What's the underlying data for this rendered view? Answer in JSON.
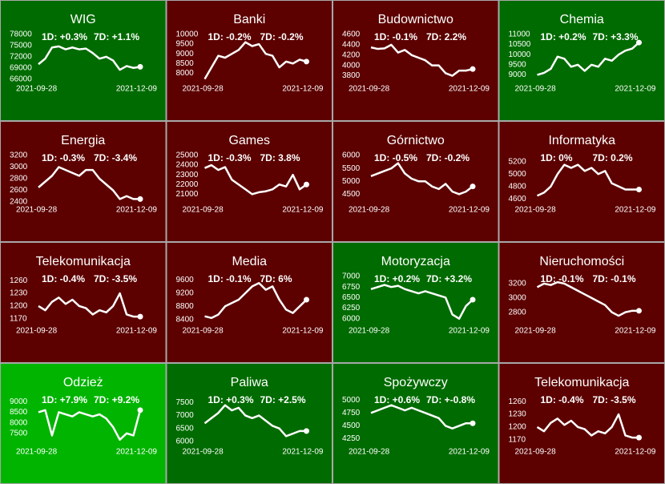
{
  "chart_data": [
    {
      "type": "line",
      "title": "WIG",
      "annotations": [
        "1D: +0.3%",
        "7D: +1.1%"
      ],
      "background": "#006b00",
      "color": "#ffffff",
      "categories": [
        "2021-09-28",
        null,
        null,
        null,
        null,
        null,
        null,
        null,
        null,
        null,
        null,
        null,
        null,
        null,
        null,
        "2021-12-09"
      ],
      "values": [
        70000,
        71500,
        74500,
        74800,
        74000,
        74500,
        74000,
        74200,
        73000,
        71500,
        72000,
        71000,
        68500,
        69500,
        69000,
        69300
      ],
      "ylim": [
        65500,
        78000
      ],
      "yticks": [
        66000,
        69000,
        72000,
        75000,
        78000
      ]
    },
    {
      "type": "line",
      "title": "Banki",
      "annotations": [
        "1D: -0.2%",
        "7D: -0.2%"
      ],
      "background": "#5c0000",
      "color": "#ffffff",
      "categories": [
        "2021-09-28",
        null,
        null,
        null,
        null,
        null,
        null,
        null,
        null,
        null,
        null,
        null,
        null,
        null,
        null,
        "2021-12-09"
      ],
      "values": [
        7700,
        8300,
        8900,
        8800,
        9000,
        9200,
        9600,
        9400,
        9500,
        9000,
        8900,
        8300,
        8600,
        8500,
        8700,
        8600
      ],
      "ylim": [
        7600,
        10000
      ],
      "yticks": [
        8000,
        8500,
        9000,
        9500,
        10000
      ]
    },
    {
      "type": "line",
      "title": "Budownictwo",
      "annotations": [
        "1D: -0.1%",
        "7D: 2.2%"
      ],
      "background": "#5c0000",
      "color": "#ffffff",
      "categories": [
        "2021-09-28",
        null,
        null,
        null,
        null,
        null,
        null,
        null,
        null,
        null,
        null,
        null,
        null,
        null,
        null,
        "2021-12-09"
      ],
      "values": [
        4350,
        4320,
        4330,
        4400,
        4250,
        4300,
        4200,
        4150,
        4100,
        4000,
        4000,
        3850,
        3800,
        3900,
        3900,
        3930
      ],
      "ylim": [
        3700,
        4600
      ],
      "yticks": [
        3800,
        4000,
        4200,
        4400,
        4600
      ]
    },
    {
      "type": "line",
      "title": "Chemia",
      "annotations": [
        "1D: +0.2%",
        "7D: +3.3%"
      ],
      "background": "#006b00",
      "color": "#ffffff",
      "categories": [
        "2021-09-28",
        null,
        null,
        null,
        null,
        null,
        null,
        null,
        null,
        null,
        null,
        null,
        null,
        null,
        null,
        "2021-12-09"
      ],
      "values": [
        9000,
        9100,
        9300,
        9900,
        9800,
        9400,
        9500,
        9200,
        9500,
        9400,
        9800,
        9700,
        10000,
        10200,
        10300,
        10600
      ],
      "ylim": [
        8700,
        11000
      ],
      "yticks": [
        9000,
        9500,
        10000,
        10500,
        11000
      ]
    },
    {
      "type": "line",
      "title": "Energia",
      "annotations": [
        "1D: -0.3%",
        "7D: -3.4%"
      ],
      "background": "#5c0000",
      "color": "#ffffff",
      "categories": [
        "2021-09-28",
        null,
        null,
        null,
        null,
        null,
        null,
        null,
        null,
        null,
        null,
        null,
        null,
        null,
        null,
        "2021-12-09"
      ],
      "values": [
        2650,
        2750,
        2850,
        3000,
        2950,
        2900,
        2850,
        2950,
        2950,
        2800,
        2700,
        2600,
        2450,
        2500,
        2450,
        2450
      ],
      "ylim": [
        2400,
        3200
      ],
      "yticks": [
        2400,
        2600,
        2800,
        3000,
        3200
      ]
    },
    {
      "type": "line",
      "title": "Games",
      "annotations": [
        "1D: -0.3%",
        "7D: 3.8%"
      ],
      "background": "#5c0000",
      "color": "#ffffff",
      "categories": [
        "2021-09-28",
        null,
        null,
        null,
        null,
        null,
        null,
        null,
        null,
        null,
        null,
        null,
        null,
        null,
        null,
        "2021-12-09"
      ],
      "values": [
        23700,
        24000,
        23500,
        23800,
        22500,
        22000,
        21500,
        21000,
        21200,
        21300,
        21500,
        22000,
        21800,
        23000,
        21500,
        22000
      ],
      "ylim": [
        20200,
        25000
      ],
      "yticks": [
        21000,
        22000,
        23000,
        24000,
        25000
      ]
    },
    {
      "type": "line",
      "title": "Górnictwo",
      "annotations": [
        "1D: -0.5%",
        "7D: -0.2%"
      ],
      "background": "#5c0000",
      "color": "#ffffff",
      "categories": [
        "2021-09-28",
        null,
        null,
        null,
        null,
        null,
        null,
        null,
        null,
        null,
        null,
        null,
        null,
        null,
        null,
        "2021-12-09"
      ],
      "values": [
        5200,
        5300,
        5400,
        5500,
        5700,
        5300,
        5100,
        5000,
        5000,
        4800,
        4700,
        4900,
        4600,
        4500,
        4600,
        4800
      ],
      "ylim": [
        4200,
        6000
      ],
      "yticks": [
        4500,
        5000,
        5500,
        6000
      ]
    },
    {
      "type": "line",
      "title": "Informatyka",
      "annotations": [
        "1D: 0%",
        "7D: 0.2%"
      ],
      "background": "#5c0000",
      "color": "#ffffff",
      "categories": [
        "2021-09-28",
        null,
        null,
        null,
        null,
        null,
        null,
        null,
        null,
        null,
        null,
        null,
        null,
        null,
        null,
        "2021-12-09"
      ],
      "values": [
        4650,
        4700,
        4800,
        5000,
        5150,
        5100,
        5150,
        5050,
        5100,
        5000,
        5050,
        4850,
        4800,
        4750,
        4750,
        4750
      ],
      "ylim": [
        4550,
        5300
      ],
      "yticks": [
        4600,
        4800,
        5000,
        5200
      ]
    },
    {
      "type": "line",
      "title": "Telekomunikacja",
      "annotations": [
        "1D: -0.4%",
        "7D: -3.5%"
      ],
      "background": "#5c0000",
      "color": "#ffffff",
      "categories": [
        "2021-09-28",
        null,
        null,
        null,
        null,
        null,
        null,
        null,
        null,
        null,
        null,
        null,
        null,
        null,
        null,
        "2021-12-09"
      ],
      "values": [
        1200,
        1190,
        1210,
        1220,
        1205,
        1215,
        1200,
        1195,
        1180,
        1190,
        1185,
        1200,
        1230,
        1180,
        1175,
        1175
      ],
      "ylim": [
        1160,
        1270
      ],
      "yticks": [
        1170,
        1200,
        1230,
        1260
      ]
    },
    {
      "type": "line",
      "title": "Media",
      "annotations": [
        "1D: -0.1%",
        "7D: 6%"
      ],
      "background": "#5c0000",
      "color": "#ffffff",
      "categories": [
        "2021-09-28",
        null,
        null,
        null,
        null,
        null,
        null,
        null,
        null,
        null,
        null,
        null,
        null,
        null,
        null,
        "2021-12-09"
      ],
      "values": [
        8500,
        8450,
        8550,
        8800,
        8900,
        9000,
        9200,
        9400,
        9500,
        9300,
        9400,
        9000,
        8700,
        8600,
        8800,
        9000
      ],
      "ylim": [
        8300,
        9700
      ],
      "yticks": [
        8400,
        8800,
        9200,
        9600
      ]
    },
    {
      "type": "line",
      "title": "Motoryzacja",
      "annotations": [
        "1D: +0.2%",
        "7D: +3.2%"
      ],
      "background": "#006b00",
      "color": "#ffffff",
      "categories": [
        "2021-09-28",
        null,
        null,
        null,
        null,
        null,
        null,
        null,
        null,
        null,
        null,
        null,
        null,
        null,
        null,
        "2021-12-09"
      ],
      "values": [
        6700,
        6750,
        6800,
        6750,
        6780,
        6700,
        6650,
        6600,
        6650,
        6600,
        6550,
        6500,
        6100,
        6000,
        6300,
        6450
      ],
      "ylim": [
        5900,
        7000
      ],
      "yticks": [
        6000,
        6250,
        6500,
        6750,
        7000
      ]
    },
    {
      "type": "line",
      "title": "Nieruchomości",
      "annotations": [
        "1D: -0.1%",
        "7D: -0.1%"
      ],
      "background": "#5c0000",
      "color": "#ffffff",
      "categories": [
        "2021-09-28",
        null,
        null,
        null,
        null,
        null,
        null,
        null,
        null,
        null,
        null,
        null,
        null,
        null,
        null,
        "2021-12-09"
      ],
      "values": [
        3150,
        3200,
        3180,
        3220,
        3200,
        3150,
        3100,
        3050,
        3000,
        2950,
        2900,
        2800,
        2750,
        2800,
        2820,
        2820
      ],
      "ylim": [
        2650,
        3300
      ],
      "yticks": [
        2800,
        3000,
        3200
      ]
    },
    {
      "type": "line",
      "title": "Odzież",
      "annotations": [
        "1D: +7.9%",
        "7D: +9.2%"
      ],
      "background": "#00b400",
      "color": "#ffffff",
      "categories": [
        "2021-09-28",
        null,
        null,
        null,
        null,
        null,
        null,
        null,
        null,
        null,
        null,
        null,
        null,
        null,
        null,
        "2021-12-09"
      ],
      "values": [
        8500,
        8600,
        7400,
        8500,
        8400,
        8300,
        8500,
        8400,
        8300,
        8400,
        8200,
        7800,
        7200,
        7500,
        7400,
        8600
      ],
      "ylim": [
        7000,
        9200
      ],
      "yticks": [
        7500,
        8000,
        8500,
        9000
      ]
    },
    {
      "type": "line",
      "title": "Paliwa",
      "annotations": [
        "1D: +0.3%",
        "7D: +2.5%"
      ],
      "background": "#006b00",
      "color": "#ffffff",
      "categories": [
        "2021-09-28",
        null,
        null,
        null,
        null,
        null,
        null,
        null,
        null,
        null,
        null,
        null,
        null,
        null,
        null,
        "2021-12-09"
      ],
      "values": [
        6700,
        6900,
        7100,
        7400,
        7200,
        7300,
        7000,
        6900,
        7000,
        6800,
        6600,
        6500,
        6200,
        6300,
        6400,
        6400
      ],
      "ylim": [
        5900,
        7700
      ],
      "yticks": [
        6000,
        6500,
        7000,
        7500
      ]
    },
    {
      "type": "line",
      "title": "Spożywczy",
      "annotations": [
        "1D: +0.6%",
        "7D: +-0.8%"
      ],
      "background": "#006b00",
      "color": "#ffffff",
      "categories": [
        "2021-09-28",
        null,
        null,
        null,
        null,
        null,
        null,
        null,
        null,
        null,
        null,
        null,
        null,
        null,
        null,
        "2021-12-09"
      ],
      "values": [
        4750,
        4800,
        4850,
        4900,
        4850,
        4800,
        4850,
        4800,
        4750,
        4700,
        4650,
        4500,
        4450,
        4500,
        4550,
        4550
      ],
      "ylim": [
        4150,
        5050
      ],
      "yticks": [
        4250,
        4500,
        4750,
        5000
      ]
    },
    {
      "type": "line",
      "title": "Telekomunikacja",
      "annotations": [
        "1D: -0.4%",
        "7D: -3.5%"
      ],
      "background": "#5c0000",
      "color": "#ffffff",
      "categories": [
        "2021-09-28",
        null,
        null,
        null,
        null,
        null,
        null,
        null,
        null,
        null,
        null,
        null,
        null,
        null,
        null,
        "2021-12-09"
      ],
      "values": [
        1200,
        1190,
        1210,
        1220,
        1205,
        1215,
        1200,
        1195,
        1180,
        1190,
        1185,
        1200,
        1230,
        1180,
        1175,
        1175
      ],
      "ylim": [
        1160,
        1270
      ],
      "yticks": [
        1170,
        1200,
        1230,
        1260
      ]
    }
  ]
}
